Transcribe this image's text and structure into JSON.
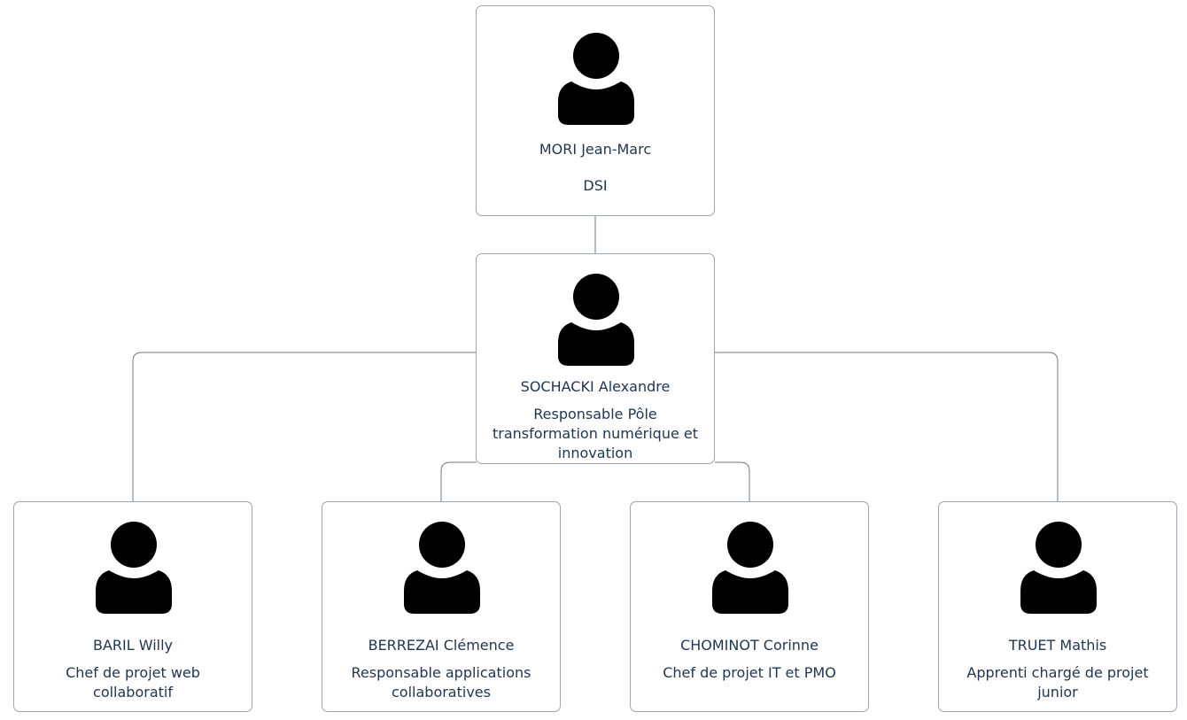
{
  "chart_title": "",
  "people": {
    "mori": {
      "name": "MORI Jean-Marc",
      "role": "DSI"
    },
    "sochacki": {
      "name": "SOCHACKI Alexandre",
      "role": "Responsable Pôle transformation numérique et innovation"
    },
    "baril": {
      "name": "BARIL Willy",
      "role": "Chef de projet web collaboratif"
    },
    "berrezai": {
      "name": "BERREZAI Clémence",
      "role": "Responsable applications collaboratives"
    },
    "chominot": {
      "name": "CHOMINOT Corinne",
      "role": "Chef de projet IT et PMO"
    },
    "truet": {
      "name": "TRUET Mathis",
      "role": "Apprenti chargé de projet junior"
    }
  },
  "hierarchy": {
    "mori": [
      "sochacki"
    ],
    "sochacki": [
      "baril",
      "berrezai",
      "chominot",
      "truet"
    ]
  },
  "icons": {
    "avatar": "person-silhouette-icon"
  },
  "colors": {
    "border": "#9aa6b4",
    "text": "#1f3550",
    "icon": "#000000",
    "line": "#6c7a8a"
  }
}
